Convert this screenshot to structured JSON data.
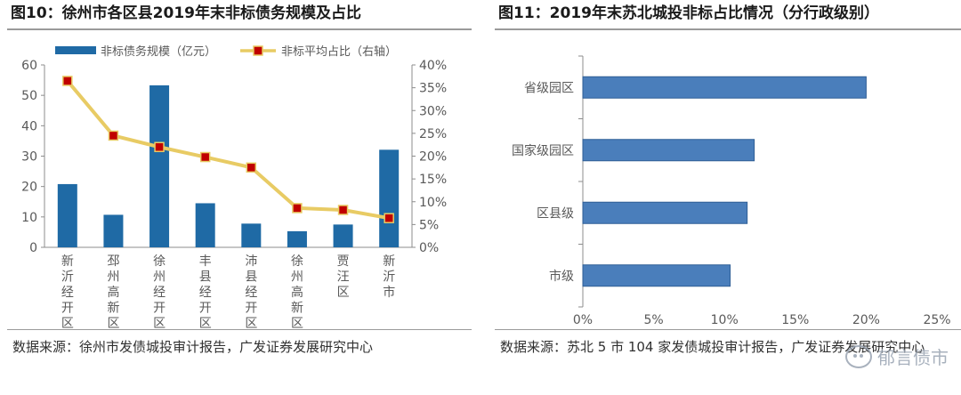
{
  "left": {
    "title": "图10：徐州市各区县2019年末非标债务规模及占比",
    "source": "数据来源：徐州市发债城投审计报告，广发证券发展研究中心"
  },
  "right": {
    "title": "图11：2019年末苏北城投非标占比情况（分行政级别）",
    "source": "数据来源：苏北 5 市 104 家发债城投审计报告，广发证券发展研究中心"
  },
  "watermark": {
    "text": "郁言债市"
  },
  "colors": {
    "bar": "#1f6aa5",
    "line": "#e8cb64",
    "marker": "#c00000",
    "hbar": "#4a7ebb",
    "hbar_edge": "#2f5e95"
  },
  "chart_data": [
    {
      "type": "bar",
      "combo": "bar+line",
      "categories": [
        "新沂经开区",
        "邳州高新区",
        "徐州经开区",
        "丰县经开区",
        "沛县经开区",
        "徐州高新区",
        "贾汪区",
        "新沂市"
      ],
      "series": [
        {
          "name": "非标债务规模（亿元）",
          "type": "bar",
          "axis": "left",
          "values": [
            20.8,
            10.7,
            53.3,
            14.5,
            7.8,
            5.3,
            7.5,
            32.1
          ]
        },
        {
          "name": "非标平均占比（右轴）",
          "type": "line",
          "axis": "right",
          "values": [
            36.5,
            24.5,
            22.0,
            19.8,
            17.5,
            8.6,
            8.2,
            6.4
          ]
        }
      ],
      "y_left": {
        "lim": [
          0,
          60
        ],
        "ticks": [
          0,
          10,
          20,
          30,
          40,
          50,
          60
        ],
        "tick_labels": [
          "0",
          "10",
          "20",
          "30",
          "40",
          "50",
          "60"
        ]
      },
      "y_right": {
        "lim": [
          0,
          40
        ],
        "ticks": [
          0,
          5,
          10,
          15,
          20,
          25,
          30,
          35,
          40
        ],
        "tick_labels": [
          "0%",
          "5%",
          "10%",
          "15%",
          "20%",
          "25%",
          "30%",
          "35%",
          "40%"
        ]
      },
      "legend_position": "top",
      "grid": false
    },
    {
      "type": "bar",
      "orientation": "horizontal",
      "categories": [
        "省级园区",
        "国家级园区",
        "区县级",
        "市级"
      ],
      "values": [
        20.0,
        12.1,
        11.6,
        10.4
      ],
      "x": {
        "lim": [
          0,
          25
        ],
        "ticks": [
          0,
          5,
          10,
          15,
          20,
          25
        ],
        "tick_labels": [
          "0%",
          "5%",
          "10%",
          "15%",
          "20%",
          "25%"
        ]
      },
      "grid": false
    }
  ]
}
